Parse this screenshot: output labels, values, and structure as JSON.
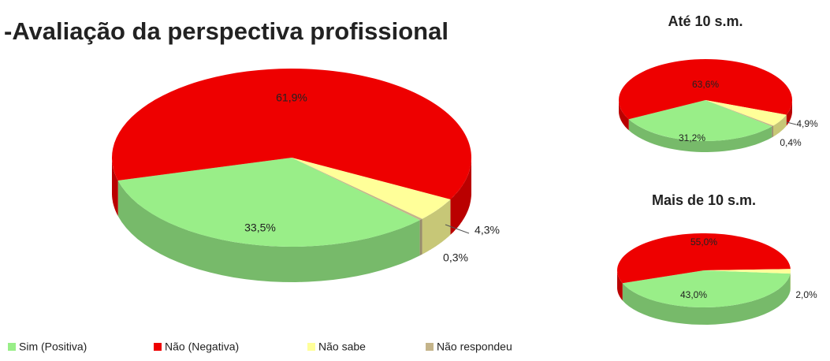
{
  "title": "-Avaliação da perspectiva profissional",
  "legend": [
    {
      "name": "Sim (Positiva)",
      "color": "#99ee88"
    },
    {
      "name": "Não (Negativa)",
      "color": "#ee0000"
    },
    {
      "name": "Não sabe",
      "color": "#ffff99"
    },
    {
      "name": "Não respondeu",
      "color": "#c4b48a"
    }
  ],
  "chart_data": [
    {
      "type": "pie",
      "values": [
        33.5,
        61.9,
        4.3,
        0.3
      ],
      "value_labels": [
        "33,5%",
        "61,9%",
        "4,3%",
        "0,3%"
      ],
      "colors": [
        "#99ee88",
        "#ee0000",
        "#ffff99",
        "#c4b48a"
      ]
    },
    {
      "type": "pie",
      "title": "Até 10 s.m.",
      "values": [
        31.2,
        63.6,
        4.9,
        0.4
      ],
      "value_labels": [
        "31,2%",
        "63,6%",
        "4,9%",
        "0,4%"
      ],
      "colors": [
        "#99ee88",
        "#ee0000",
        "#ffff99",
        "#c4b48a"
      ]
    },
    {
      "type": "pie",
      "title": "Mais de 10 s.m.",
      "values": [
        43.0,
        55.0,
        2.0
      ],
      "value_labels": [
        "43,0%",
        "55,0%",
        "2,0%"
      ],
      "colors": [
        "#99ee88",
        "#ee0000",
        "#ffff99"
      ]
    }
  ]
}
